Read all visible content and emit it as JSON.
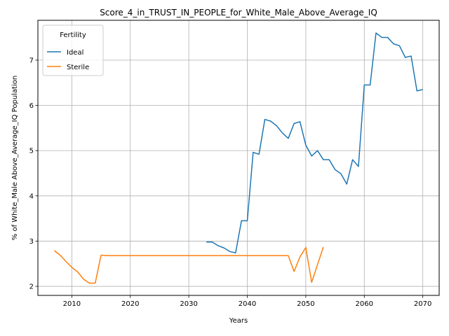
{
  "chart_data": {
    "type": "line",
    "title": "Score_4_in_TRUST_IN_PEOPLE_for_White_Male_Above_Average_IQ",
    "xlabel": "Years",
    "ylabel": "% of White_Male Above_Average_IQ Population",
    "xlim": [
      2004.2,
      2072.8
    ],
    "ylim": [
      1.8,
      7.88
    ],
    "xticks": [
      2010,
      2020,
      2030,
      2040,
      2050,
      2060,
      2070
    ],
    "yticks": [
      2,
      3,
      4,
      5,
      6,
      7
    ],
    "grid": true,
    "legend": {
      "title": "Fertility",
      "placement": "top-left"
    },
    "series": [
      {
        "name": "Ideal",
        "color": "#1f77b4",
        "x": [
          2033,
          2034,
          2035,
          2036,
          2037,
          2038,
          2039,
          2040,
          2041,
          2042,
          2043,
          2044,
          2045,
          2046,
          2047,
          2048,
          2049,
          2050,
          2051,
          2052,
          2053,
          2054,
          2055,
          2056,
          2057,
          2058,
          2059,
          2060,
          2061,
          2062,
          2063,
          2064,
          2065,
          2066,
          2067,
          2068,
          2069,
          2070
        ],
        "y": [
          2.98,
          2.98,
          2.9,
          2.85,
          2.77,
          2.74,
          3.45,
          3.45,
          4.96,
          4.92,
          5.69,
          5.65,
          5.55,
          5.39,
          5.27,
          5.6,
          5.64,
          5.12,
          4.88,
          5.0,
          4.8,
          4.8,
          4.58,
          4.49,
          4.26,
          4.8,
          4.65,
          6.45,
          6.45,
          7.6,
          7.5,
          7.5,
          7.36,
          7.32,
          7.06,
          7.09,
          6.32,
          6.35
        ]
      },
      {
        "name": "Sterile",
        "color": "#ff7f0e",
        "x": [
          2007,
          2008,
          2009,
          2010,
          2011,
          2012,
          2013,
          2014,
          2015,
          2016,
          2017,
          2018,
          2019,
          2020,
          2021,
          2022,
          2023,
          2024,
          2025,
          2026,
          2027,
          2028,
          2029,
          2030,
          2031,
          2032,
          2033,
          2034,
          2035,
          2036,
          2037,
          2038,
          2039,
          2040,
          2041,
          2042,
          2043,
          2044,
          2045,
          2046,
          2047,
          2048,
          2049,
          2050,
          2051,
          2052,
          2053
        ],
        "y": [
          2.79,
          2.69,
          2.55,
          2.42,
          2.32,
          2.16,
          2.07,
          2.07,
          2.69,
          2.68,
          2.68,
          2.68,
          2.68,
          2.68,
          2.68,
          2.68,
          2.68,
          2.68,
          2.68,
          2.68,
          2.68,
          2.68,
          2.68,
          2.68,
          2.68,
          2.68,
          2.68,
          2.68,
          2.68,
          2.68,
          2.68,
          2.68,
          2.68,
          2.68,
          2.68,
          2.68,
          2.68,
          2.68,
          2.68,
          2.68,
          2.68,
          2.33,
          2.65,
          2.86,
          2.09,
          2.48,
          2.87
        ]
      }
    ]
  }
}
